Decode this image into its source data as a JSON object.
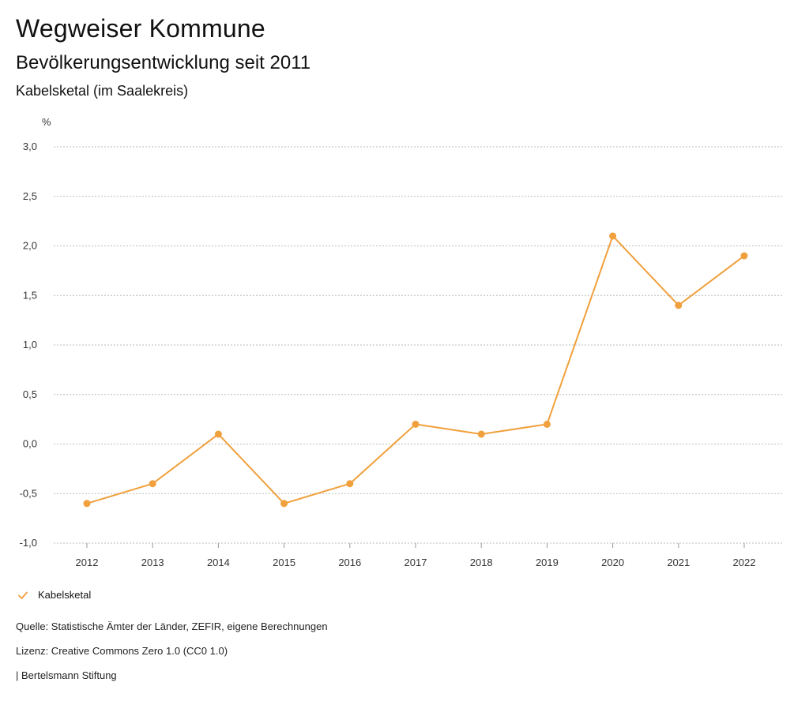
{
  "header": {
    "title": "Wegweiser Kommune",
    "subtitle": "Bevölkerungsentwicklung seit 2011",
    "region": "Kabelsketal (im Saalekreis)"
  },
  "chart_data": {
    "type": "line",
    "ylabel": "%",
    "ylim": [
      -1.0,
      3.0
    ],
    "yticks": [
      "3,0",
      "2,5",
      "2,0",
      "1,5",
      "1,0",
      "0,5",
      "0,0",
      "-0,5",
      "-1,0"
    ],
    "ytick_values": [
      3.0,
      2.5,
      2.0,
      1.5,
      1.0,
      0.5,
      0.0,
      -0.5,
      -1.0
    ],
    "grid": true,
    "legend": "bottom-left",
    "x": [
      "2012",
      "2013",
      "2014",
      "2015",
      "2016",
      "2017",
      "2018",
      "2019",
      "2020",
      "2021",
      "2022"
    ],
    "series": [
      {
        "name": "Kabelsketal",
        "color": "#f0a03c",
        "values": [
          -0.6,
          -0.4,
          0.1,
          -0.6,
          -0.4,
          0.2,
          0.1,
          0.2,
          2.1,
          1.4,
          1.9
        ]
      }
    ]
  },
  "legend": {
    "label": "Kabelsketal",
    "icon": "checkmark-icon"
  },
  "footer": {
    "source": "Quelle: Statistische Ämter der Länder, ZEFIR, eigene Berechnungen",
    "license": "Lizenz: Creative Commons Zero 1.0 (CC0 1.0)",
    "brand": "| Bertelsmann Stiftung"
  },
  "colors": {
    "accent": "#f0a03c",
    "grid": "#bbbbbb",
    "text": "#111111"
  }
}
